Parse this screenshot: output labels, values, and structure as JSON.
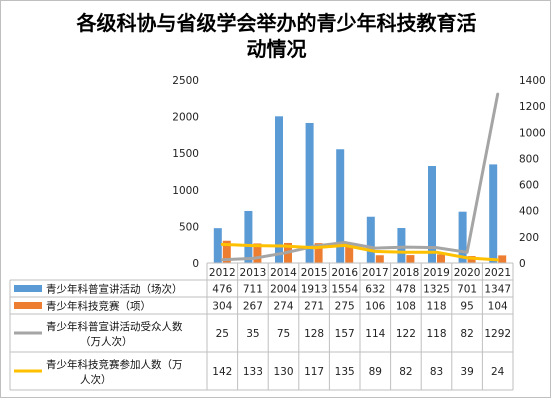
{
  "chart_data": {
    "type": "bar",
    "title_lines": [
      "各级科协与省级学会举办的青少年科技教育活",
      "动情况"
    ],
    "categories": [
      "2012",
      "2013",
      "2014",
      "2015",
      "2016",
      "2017",
      "2018",
      "2019",
      "2020",
      "2021"
    ],
    "ylim_left": [
      0,
      2500
    ],
    "yticks_left": [
      "0",
      "500",
      "1000",
      "1500",
      "2000",
      "2500"
    ],
    "ylim_right": [
      0,
      1400
    ],
    "yticks_right": [
      "0",
      "200",
      "400",
      "600",
      "800",
      "1000",
      "1200",
      "1400"
    ],
    "grid": false,
    "legend": "data table below plot",
    "series": [
      {
        "name": "青少年科普宣讲活动（场次）",
        "type": "bar",
        "axis": "left",
        "color": "#5b9bd5",
        "values": [
          476,
          711,
          2004,
          1913,
          1554,
          632,
          478,
          1325,
          701,
          1347
        ]
      },
      {
        "name": "青少年科技竞赛（项）",
        "type": "bar",
        "axis": "left",
        "color": "#ed7d31",
        "values": [
          304,
          267,
          274,
          271,
          275,
          106,
          108,
          118,
          95,
          104
        ]
      },
      {
        "name": "青少年科普宣讲活动受众人数（万人次）",
        "name_lines": [
          "青少年科普宣讲活动受众人数",
          "（万人次）"
        ],
        "type": "line",
        "axis": "right",
        "color": "#a5a5a5",
        "values": [
          25,
          35,
          75,
          128,
          157,
          114,
          122,
          118,
          82,
          1292
        ]
      },
      {
        "name": "青少年科技竞赛参加人数（万人次）",
        "name_lines": [
          "青少年科技竞赛参加人数（万",
          "人次）"
        ],
        "type": "line",
        "axis": "right",
        "color": "#ffc000",
        "values": [
          142,
          133,
          130,
          117,
          135,
          89,
          82,
          83,
          39,
          24
        ]
      }
    ]
  }
}
